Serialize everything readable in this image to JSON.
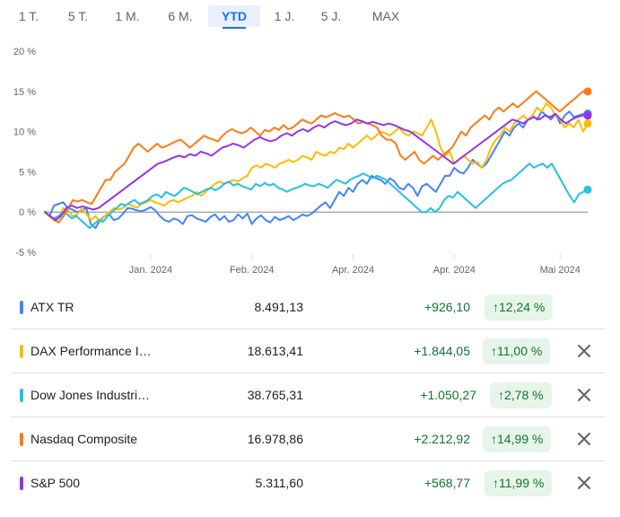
{
  "tabs": [
    {
      "label": "1 T."
    },
    {
      "label": "5 T."
    },
    {
      "label": "1 M."
    },
    {
      "label": "6 M."
    },
    {
      "label": "YTD",
      "active": true
    },
    {
      "label": "1 J."
    },
    {
      "label": "5 J."
    },
    {
      "label": "MAX"
    }
  ],
  "chart_data": {
    "type": "line",
    "y_ticks": [
      "20 %",
      "15 %",
      "10 %",
      "5 %",
      "0 %",
      "-5 %"
    ],
    "y_values": [
      20,
      15,
      10,
      5,
      0,
      -5
    ],
    "ylim": [
      -5,
      20
    ],
    "xlim": [
      0,
      118
    ],
    "x_ticks": [
      {
        "label": "Jan. 2024",
        "x": 23
      },
      {
        "label": "Feb. 2024",
        "x": 45
      },
      {
        "label": "Apr. 2024",
        "x": 67
      },
      {
        "label": "Apr. 2024",
        "x": 89
      },
      {
        "label": "Mai 2024",
        "x": 112
      }
    ],
    "zero_line": 0,
    "grid": false,
    "series": [
      {
        "name": "ATX TR",
        "color": "#4285f4",
        "end_marker": true,
        "values": [
          0,
          -0.5,
          0.8,
          1,
          1.2,
          0.5,
          0.3,
          0,
          0.2,
          0.5,
          -1.5,
          -2,
          -1,
          -0.5,
          -0.3,
          -1,
          -0.8,
          -0.2,
          0.5,
          0.4,
          0.2,
          0.1,
          0.3,
          0.6,
          0.2,
          -0.5,
          -1,
          -1.2,
          -0.8,
          -1,
          -1.5,
          -0.5,
          -0.4,
          -0.8,
          -1,
          -1.2,
          -0.6,
          -0.3,
          -1,
          -0.5,
          -1.2,
          -1,
          -0.3,
          -0.8,
          -0.2,
          -1.5,
          -0.8,
          -0.4,
          -1,
          -1.3,
          -0.6,
          -1,
          -0.8,
          -0.5,
          -1,
          -0.7,
          -0.3,
          -0.5,
          -0.2,
          0.3,
          0.8,
          1.2,
          0.5,
          1.5,
          2.5,
          2,
          3,
          2.5,
          3.5,
          4,
          3.5,
          4.5,
          4.2,
          4,
          3.5,
          4.2,
          3.8,
          3,
          2.8,
          3.5,
          3,
          2,
          3.2,
          3.5,
          3,
          2.5,
          3.5,
          4.5,
          4.5,
          5.5,
          5,
          4.8,
          5.5,
          6.5,
          6,
          5.5,
          6,
          7,
          8,
          9,
          10,
          9.5,
          10.5,
          11,
          10.5,
          11.5,
          12,
          11.5,
          12.5,
          12,
          11.5,
          12.2,
          11,
          12,
          12.5,
          11.8,
          12,
          12.2,
          12.24
        ]
      },
      {
        "name": "DAX Performance I…",
        "color": "#fbbc04",
        "end_marker": true,
        "values": [
          0,
          -0.5,
          -1,
          -0.8,
          0.5,
          0.2,
          -0.5,
          -0.3,
          0.4,
          -0.2,
          -1,
          -0.5,
          -1.2,
          -0.5,
          0,
          0.5,
          0.3,
          0.5,
          1,
          0.8,
          0.5,
          1,
          1.2,
          1.5,
          1.2,
          1,
          0.8,
          1.3,
          1.5,
          1.2,
          1.5,
          1.8,
          2,
          2.5,
          2,
          2.5,
          3,
          3.5,
          3.8,
          3.5,
          3.7,
          4,
          3.8,
          4.2,
          4.5,
          5.5,
          5.8,
          5.5,
          6,
          5.8,
          5.5,
          6,
          6.2,
          6.5,
          6.2,
          6.5,
          7,
          6.8,
          6.5,
          7.5,
          7.2,
          7,
          7.5,
          7.3,
          8,
          7.8,
          8.5,
          8,
          8.5,
          9,
          9.5,
          9,
          9.5,
          10,
          9.8,
          9.5,
          10,
          10.5,
          9.8,
          9.5,
          10,
          9.8,
          9.5,
          10.5,
          11.5,
          10,
          8,
          7,
          7.5,
          6,
          6.5,
          7,
          6.5,
          6,
          6.2,
          5.5,
          6.5,
          8,
          9,
          9.5,
          10.5,
          10,
          11,
          11.5,
          12,
          11.5,
          12,
          13,
          12.5,
          13.5,
          13,
          12,
          11.5,
          10.5,
          11,
          10.5,
          11.5,
          10,
          11
        ]
      },
      {
        "name": "Dow Jones Industri…",
        "color": "#24c1e0",
        "end_marker": true,
        "values": [
          0,
          -0.5,
          -0.8,
          -0.5,
          0,
          -0.3,
          -0.8,
          -0.5,
          -1,
          -1.5,
          -2,
          -1.5,
          -1,
          -1.2,
          -0.5,
          0,
          0.5,
          1,
          0.8,
          1.2,
          1.5,
          1,
          1.2,
          1.5,
          2,
          2.2,
          1.8,
          2.5,
          2.2,
          2,
          2.5,
          3,
          2.8,
          2.5,
          2.2,
          2.5,
          2.8,
          3,
          2.7,
          3,
          3.5,
          3.8,
          3.3,
          3.5,
          3.2,
          3,
          2.8,
          3.5,
          3.2,
          3.6,
          3.3,
          3.5,
          3,
          2.8,
          2.5,
          2.8,
          3,
          3.2,
          3.5,
          3.3,
          3.2,
          3.5,
          3.3,
          3,
          3.5,
          4,
          3.8,
          3.5,
          4,
          4.3,
          4.5,
          4.8,
          4.5,
          4.2,
          4.5,
          4.3,
          4,
          3.5,
          3,
          2.5,
          2,
          1.5,
          1,
          0.5,
          0,
          0,
          0.5,
          0,
          0.5,
          1.5,
          2,
          1.8,
          2.5,
          2,
          1.5,
          1,
          0.5,
          1,
          1.5,
          2,
          2.5,
          3,
          3.5,
          3.8,
          4,
          4.5,
          5,
          5.5,
          6,
          5.5,
          5.8,
          6,
          5.5,
          6,
          5,
          4,
          3,
          2,
          1.2,
          2.2,
          2.5,
          2.78
        ]
      },
      {
        "name": "Nasdaq Composite",
        "color": "#fa7b17",
        "end_marker": true,
        "values": [
          0,
          -0.5,
          -1,
          -1.3,
          -0.5,
          0.5,
          1.5,
          1.3,
          1.5,
          1.2,
          1,
          2,
          3,
          4,
          4,
          5,
          5.5,
          6,
          7,
          8,
          8.5,
          8,
          7.5,
          8,
          8.5,
          8,
          8.2,
          8.5,
          8.8,
          9,
          8.5,
          8,
          8.5,
          9,
          9.5,
          9.2,
          9,
          8.8,
          9.5,
          10,
          10.3,
          10,
          9.8,
          10,
          10.5,
          10,
          9.5,
          10.2,
          10,
          10.5,
          10.2,
          10.8,
          10.3,
          10.5,
          11,
          11.5,
          11.2,
          11,
          11.5,
          12,
          11.8,
          12,
          12.3,
          12,
          11.8,
          12,
          11.5,
          11,
          11.2,
          11,
          10.8,
          10.5,
          9.5,
          9,
          9,
          8.5,
          7,
          6.5,
          7,
          7.5,
          6.5,
          6,
          6.5,
          7,
          6.5,
          7,
          7.5,
          8,
          9,
          10,
          9.5,
          10.5,
          11,
          11.5,
          12,
          11.5,
          12.5,
          13,
          12.5,
          13,
          13.5,
          13,
          13.5,
          14,
          14.5,
          15,
          14.5,
          14,
          13.5,
          13,
          12.5,
          13,
          13.5,
          14,
          14.5,
          15,
          14.99
        ]
      },
      {
        "name": "S&P 500",
        "color": "#9334e6",
        "end_marker": true,
        "values": [
          0,
          -0.5,
          -1,
          -0.5,
          0.5,
          0.8,
          0.5,
          0.7,
          0.5,
          0.3,
          0.5,
          1,
          1.5,
          2,
          2.5,
          3,
          3.5,
          4,
          4.5,
          5,
          5.5,
          6,
          6.2,
          6.5,
          6.8,
          7,
          6.8,
          7.2,
          7,
          7.5,
          7.3,
          7,
          7.5,
          8,
          8.2,
          8.5,
          8.3,
          8,
          8.5,
          9,
          9.3,
          9,
          8.8,
          9,
          9.5,
          9.8,
          9.5,
          10,
          10.3,
          10,
          10.5,
          10.8,
          10.5,
          11,
          11.3,
          11,
          10.8,
          11,
          11.5,
          11.3,
          11,
          11.2,
          11,
          10.8,
          11,
          10.8,
          10.5,
          10.2,
          10,
          9.5,
          9,
          8.5,
          8,
          7.5,
          7,
          6.5,
          6,
          6.5,
          7,
          7.5,
          8,
          8.5,
          9,
          9.5,
          10,
          10.5,
          11,
          11.5,
          11.3,
          11,
          11.5,
          11.8,
          11.5,
          12,
          11.8,
          12.2,
          11.5,
          11,
          11.5,
          11.8,
          12,
          11.99
        ]
      }
    ]
  },
  "rows": [
    {
      "name": "ATX TR",
      "color": "#4285f4",
      "price": "8.491,13",
      "change": "+926,10",
      "pct": "12,24 %",
      "removable": false
    },
    {
      "name": "DAX Performance I…",
      "color": "#fbbc04",
      "price": "18.613,41",
      "change": "+1.844,05",
      "pct": "11,00 %",
      "removable": true
    },
    {
      "name": "Dow Jones Industri…",
      "color": "#24c1e0",
      "price": "38.765,31",
      "change": "+1.050,27",
      "pct": "2,78 %",
      "removable": true
    },
    {
      "name": "Nasdaq Composite",
      "color": "#fa7b17",
      "price": "16.978,86",
      "change": "+2.212,92",
      "pct": "14,99 %",
      "removable": true
    },
    {
      "name": "S&P 500",
      "color": "#9334e6",
      "price": "5.311,60",
      "change": "+568,77",
      "pct": "11,99 %",
      "removable": true
    }
  ],
  "icons": {
    "up_arrow": "arrow-up-icon",
    "close": "close-icon"
  }
}
